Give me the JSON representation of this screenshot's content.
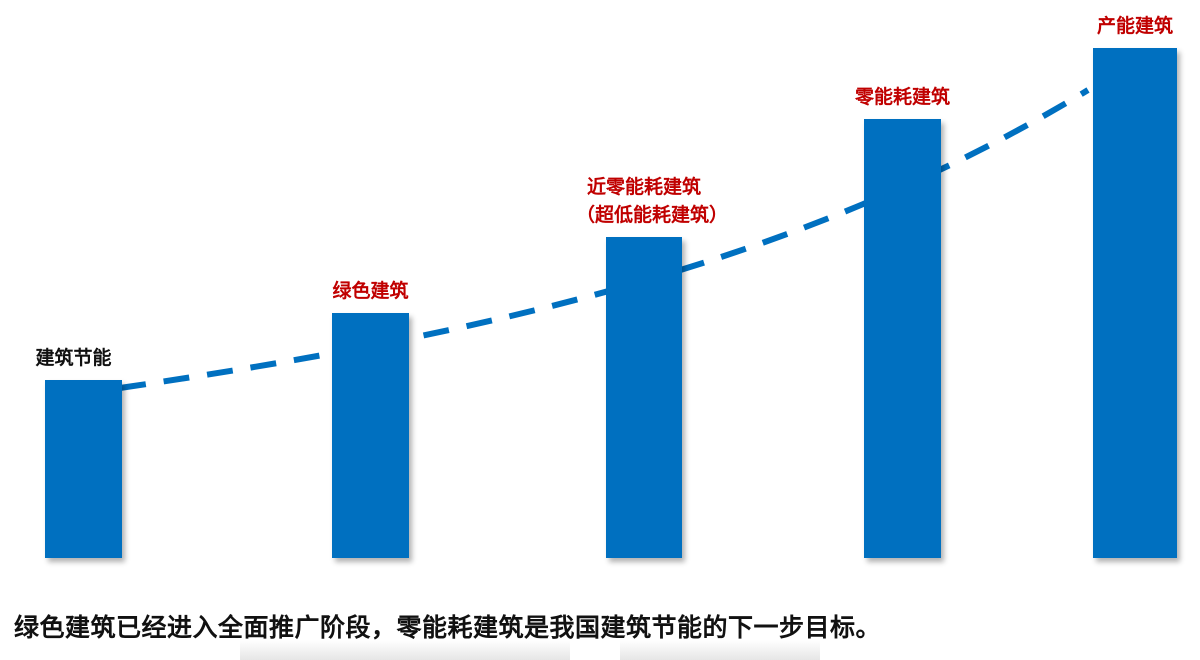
{
  "chart_data": {
    "type": "bar",
    "categories": [
      "建筑节能",
      "绿色建筑",
      "近零能耗建筑（超低能耗建筑）",
      "零能耗建筑",
      "产能建筑"
    ],
    "labels": [
      {
        "lines": [
          "建筑节能"
        ],
        "color": "#111111"
      },
      {
        "lines": [
          "绿色建筑"
        ],
        "color": "#c00000"
      },
      {
        "lines": [
          "近零能耗建筑",
          "（超低能耗建筑）"
        ],
        "color": "#c00000"
      },
      {
        "lines": [
          "零能耗建筑"
        ],
        "color": "#c00000"
      },
      {
        "lines": [
          "产能建筑"
        ],
        "color": "#c00000"
      }
    ],
    "values": [
      35,
      48,
      63,
      86,
      100
    ],
    "ylim": [
      0,
      100
    ],
    "axes_visible": false,
    "grid": false,
    "trend_line": {
      "style": "dashed",
      "color": "#0070c0"
    },
    "bar_color": "#0070c0"
  },
  "caption": "绿色建筑已经进入全面推广阶段，零能耗建筑是我国建筑节能的下一步目标。"
}
